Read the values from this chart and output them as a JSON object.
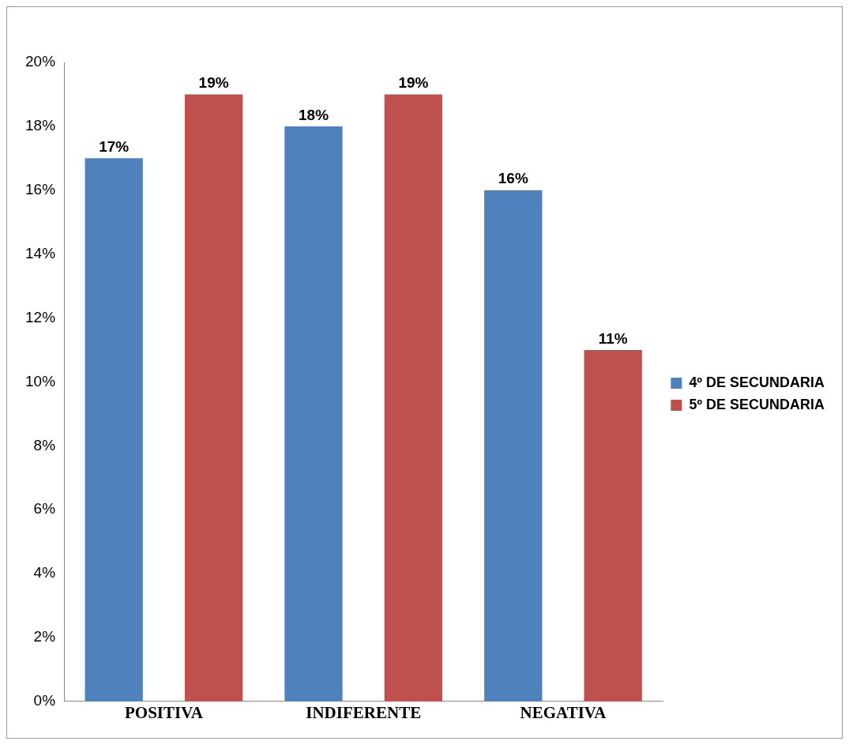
{
  "chart_data": {
    "type": "bar",
    "categories": [
      "POSITIVA",
      "INDIFERENTE",
      "NEGATIVA"
    ],
    "series": [
      {
        "name": "4º DE SECUNDARIA",
        "color": "#4f81bd",
        "values": [
          17,
          18,
          16
        ],
        "value_labels": [
          "17%",
          "18%",
          "16%"
        ]
      },
      {
        "name": "5º DE SECUNDARIA",
        "color": "#c0504d",
        "values": [
          19,
          19,
          11
        ],
        "value_labels": [
          "19%",
          "19%",
          "11%"
        ]
      }
    ],
    "ylim": [
      0,
      20
    ],
    "yticks": [
      {
        "value": 0,
        "label": "0%"
      },
      {
        "value": 2,
        "label": "2%"
      },
      {
        "value": 4,
        "label": "4%"
      },
      {
        "value": 6,
        "label": "6%"
      },
      {
        "value": 8,
        "label": "8%"
      },
      {
        "value": 10,
        "label": "10%"
      },
      {
        "value": 12,
        "label": "12%"
      },
      {
        "value": 14,
        "label": "14%"
      },
      {
        "value": 16,
        "label": "16%"
      },
      {
        "value": 18,
        "label": "18%"
      },
      {
        "value": 20,
        "label": "20%"
      }
    ],
    "grid": false,
    "legend": "right"
  }
}
